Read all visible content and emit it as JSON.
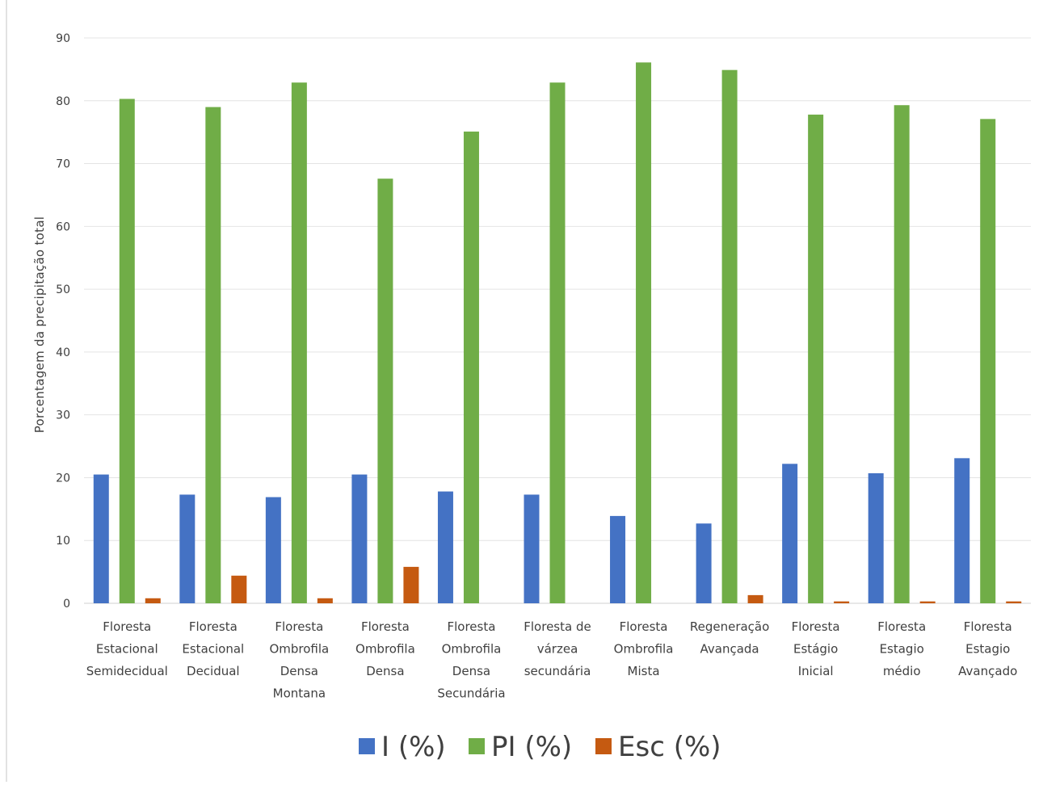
{
  "chart_data": {
    "type": "bar",
    "title": "",
    "xlabel": "",
    "ylabel": "Porcentagem da precipitação total",
    "ylim": [
      0,
      90
    ],
    "yticks": [
      0,
      10,
      20,
      30,
      40,
      50,
      60,
      70,
      80,
      90
    ],
    "grid": true,
    "legend_position": "bottom",
    "categories": [
      [
        "Floresta",
        "Estacional",
        "Semidecidual"
      ],
      [
        "Floresta",
        "Estacional",
        "Decidual"
      ],
      [
        "Floresta",
        "Ombrofila",
        "Densa",
        "Montana"
      ],
      [
        "Floresta",
        "Ombrofila",
        "Densa"
      ],
      [
        "Floresta",
        "Ombrofila",
        "Densa",
        "Secundária"
      ],
      [
        "Floresta de",
        "várzea",
        "secundária"
      ],
      [
        "Floresta",
        "Ombrofila",
        "Mista"
      ],
      [
        "Regeneração",
        "Avançada"
      ],
      [
        "Floresta",
        "Estágio",
        "Inicial"
      ],
      [
        "Floresta",
        "Estagio",
        "médio"
      ],
      [
        "Floresta",
        "Estagio",
        "Avançado"
      ]
    ],
    "series": [
      {
        "name": "I (%)",
        "color": "#4472c4",
        "values": [
          20.5,
          17.3,
          16.9,
          20.5,
          17.8,
          17.3,
          13.9,
          12.7,
          22.2,
          20.7,
          23.1
        ]
      },
      {
        "name": "PI (%)",
        "color": "#70ad47",
        "values": [
          80.3,
          79.0,
          82.9,
          67.6,
          75.1,
          82.9,
          86.1,
          84.9,
          77.8,
          79.3,
          77.1
        ]
      },
      {
        "name": "Esc (%)",
        "color": "#c55a11",
        "values": [
          0.8,
          4.4,
          0.8,
          5.8,
          0,
          0,
          0,
          1.3,
          0.3,
          0.3,
          0.3
        ]
      }
    ]
  }
}
